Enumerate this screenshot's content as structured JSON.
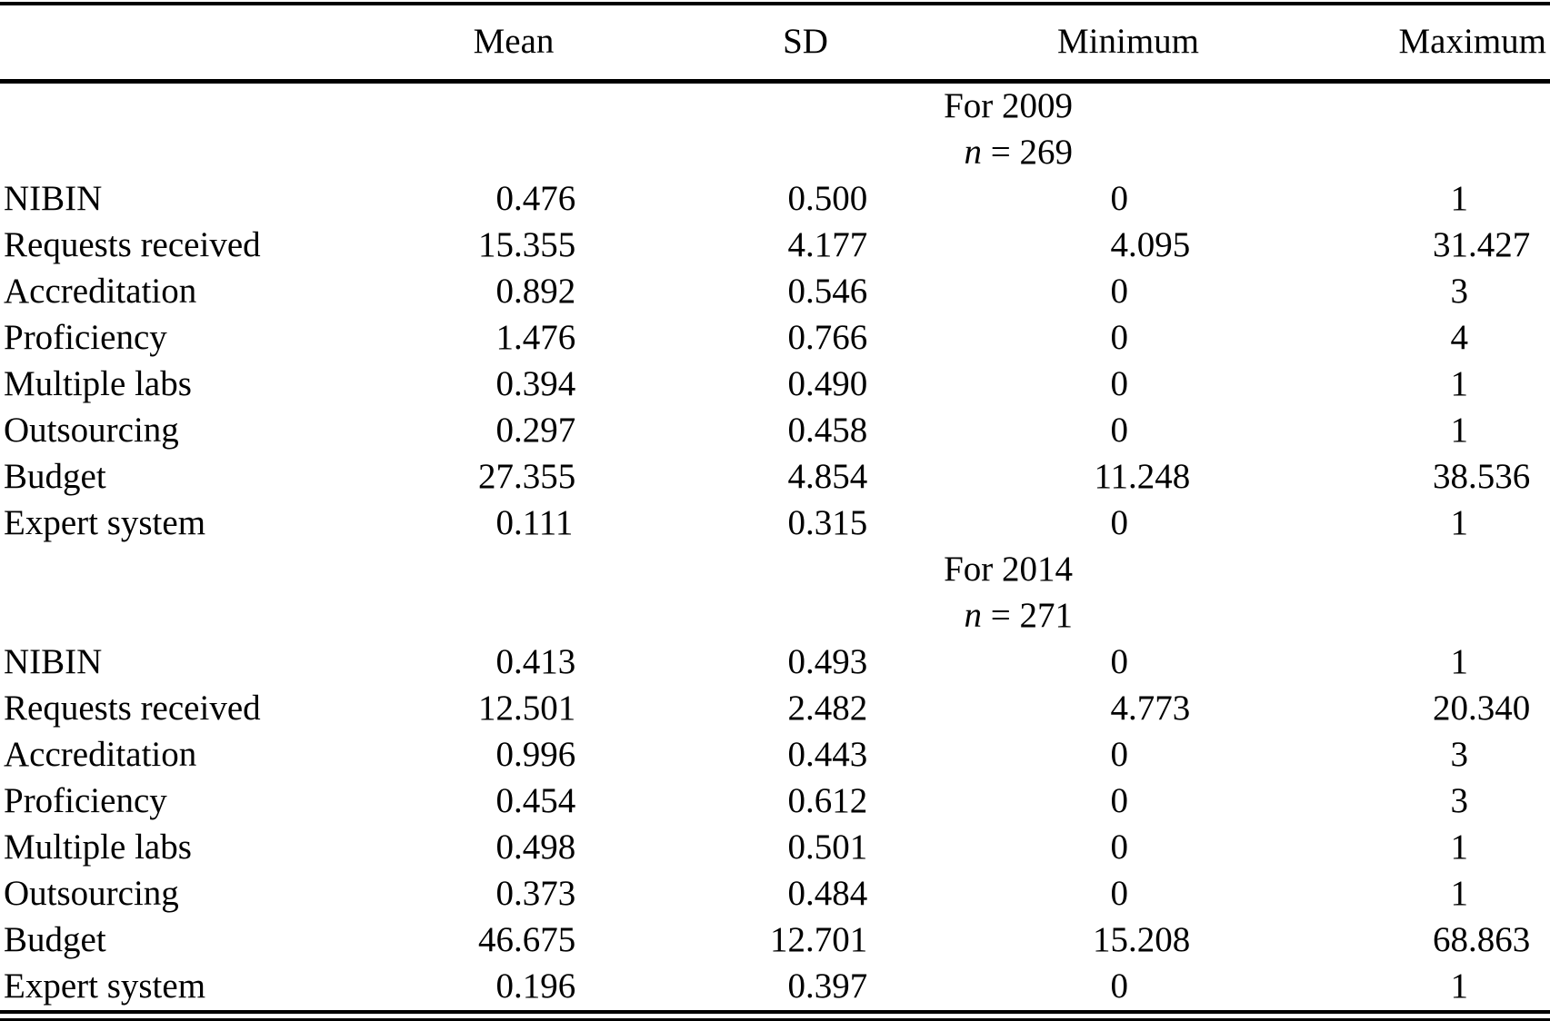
{
  "colors": {
    "text": "#000000",
    "background": "#ffffff",
    "rule": "#000000"
  },
  "table": {
    "columns": [
      "Mean",
      "SD",
      "Minimum",
      "Maximum"
    ],
    "sections": [
      {
        "title": "For 2009",
        "n_prefix": "n",
        "n_rest": " = 269",
        "rows": [
          {
            "label": "NIBIN",
            "mean": "0.476",
            "sd": "0.500",
            "min": "0",
            "max": "1"
          },
          {
            "label": "Requests received",
            "mean": "15.355",
            "sd": "4.177",
            "min": "4.095",
            "max": "31.427"
          },
          {
            "label": "Accreditation",
            "mean": "0.892",
            "sd": "0.546",
            "min": "0",
            "max": "3"
          },
          {
            "label": "Proficiency",
            "mean": "1.476",
            "sd": "0.766",
            "min": "0",
            "max": "4"
          },
          {
            "label": "Multiple labs",
            "mean": "0.394",
            "sd": "0.490",
            "min": "0",
            "max": "1"
          },
          {
            "label": "Outsourcing",
            "mean": "0.297",
            "sd": "0.458",
            "min": "0",
            "max": "1"
          },
          {
            "label": "Budget",
            "mean": "27.355",
            "sd": "4.854",
            "min": "11.248",
            "max": "38.536"
          },
          {
            "label": "Expert system",
            "mean": "0.111",
            "sd": "0.315",
            "min": "0",
            "max": "1"
          }
        ]
      },
      {
        "title": "For 2014",
        "n_prefix": "n",
        "n_rest": " = 271",
        "rows": [
          {
            "label": "NIBIN",
            "mean": "0.413",
            "sd": "0.493",
            "min": "0",
            "max": "1"
          },
          {
            "label": "Requests received",
            "mean": "12.501",
            "sd": "2.482",
            "min": "4.773",
            "max": "20.340"
          },
          {
            "label": "Accreditation",
            "mean": "0.996",
            "sd": "0.443",
            "min": "0",
            "max": "3"
          },
          {
            "label": "Proficiency",
            "mean": "0.454",
            "sd": "0.612",
            "min": "0",
            "max": "3"
          },
          {
            "label": "Multiple labs",
            "mean": "0.498",
            "sd": "0.501",
            "min": "0",
            "max": "1"
          },
          {
            "label": "Outsourcing",
            "mean": "0.373",
            "sd": "0.484",
            "min": "0",
            "max": "1"
          },
          {
            "label": "Budget",
            "mean": "46.675",
            "sd": "12.701",
            "min": "15.208",
            "max": "68.863"
          },
          {
            "label": "Expert system",
            "mean": "0.196",
            "sd": "0.397",
            "min": "0",
            "max": "1"
          }
        ]
      }
    ]
  }
}
